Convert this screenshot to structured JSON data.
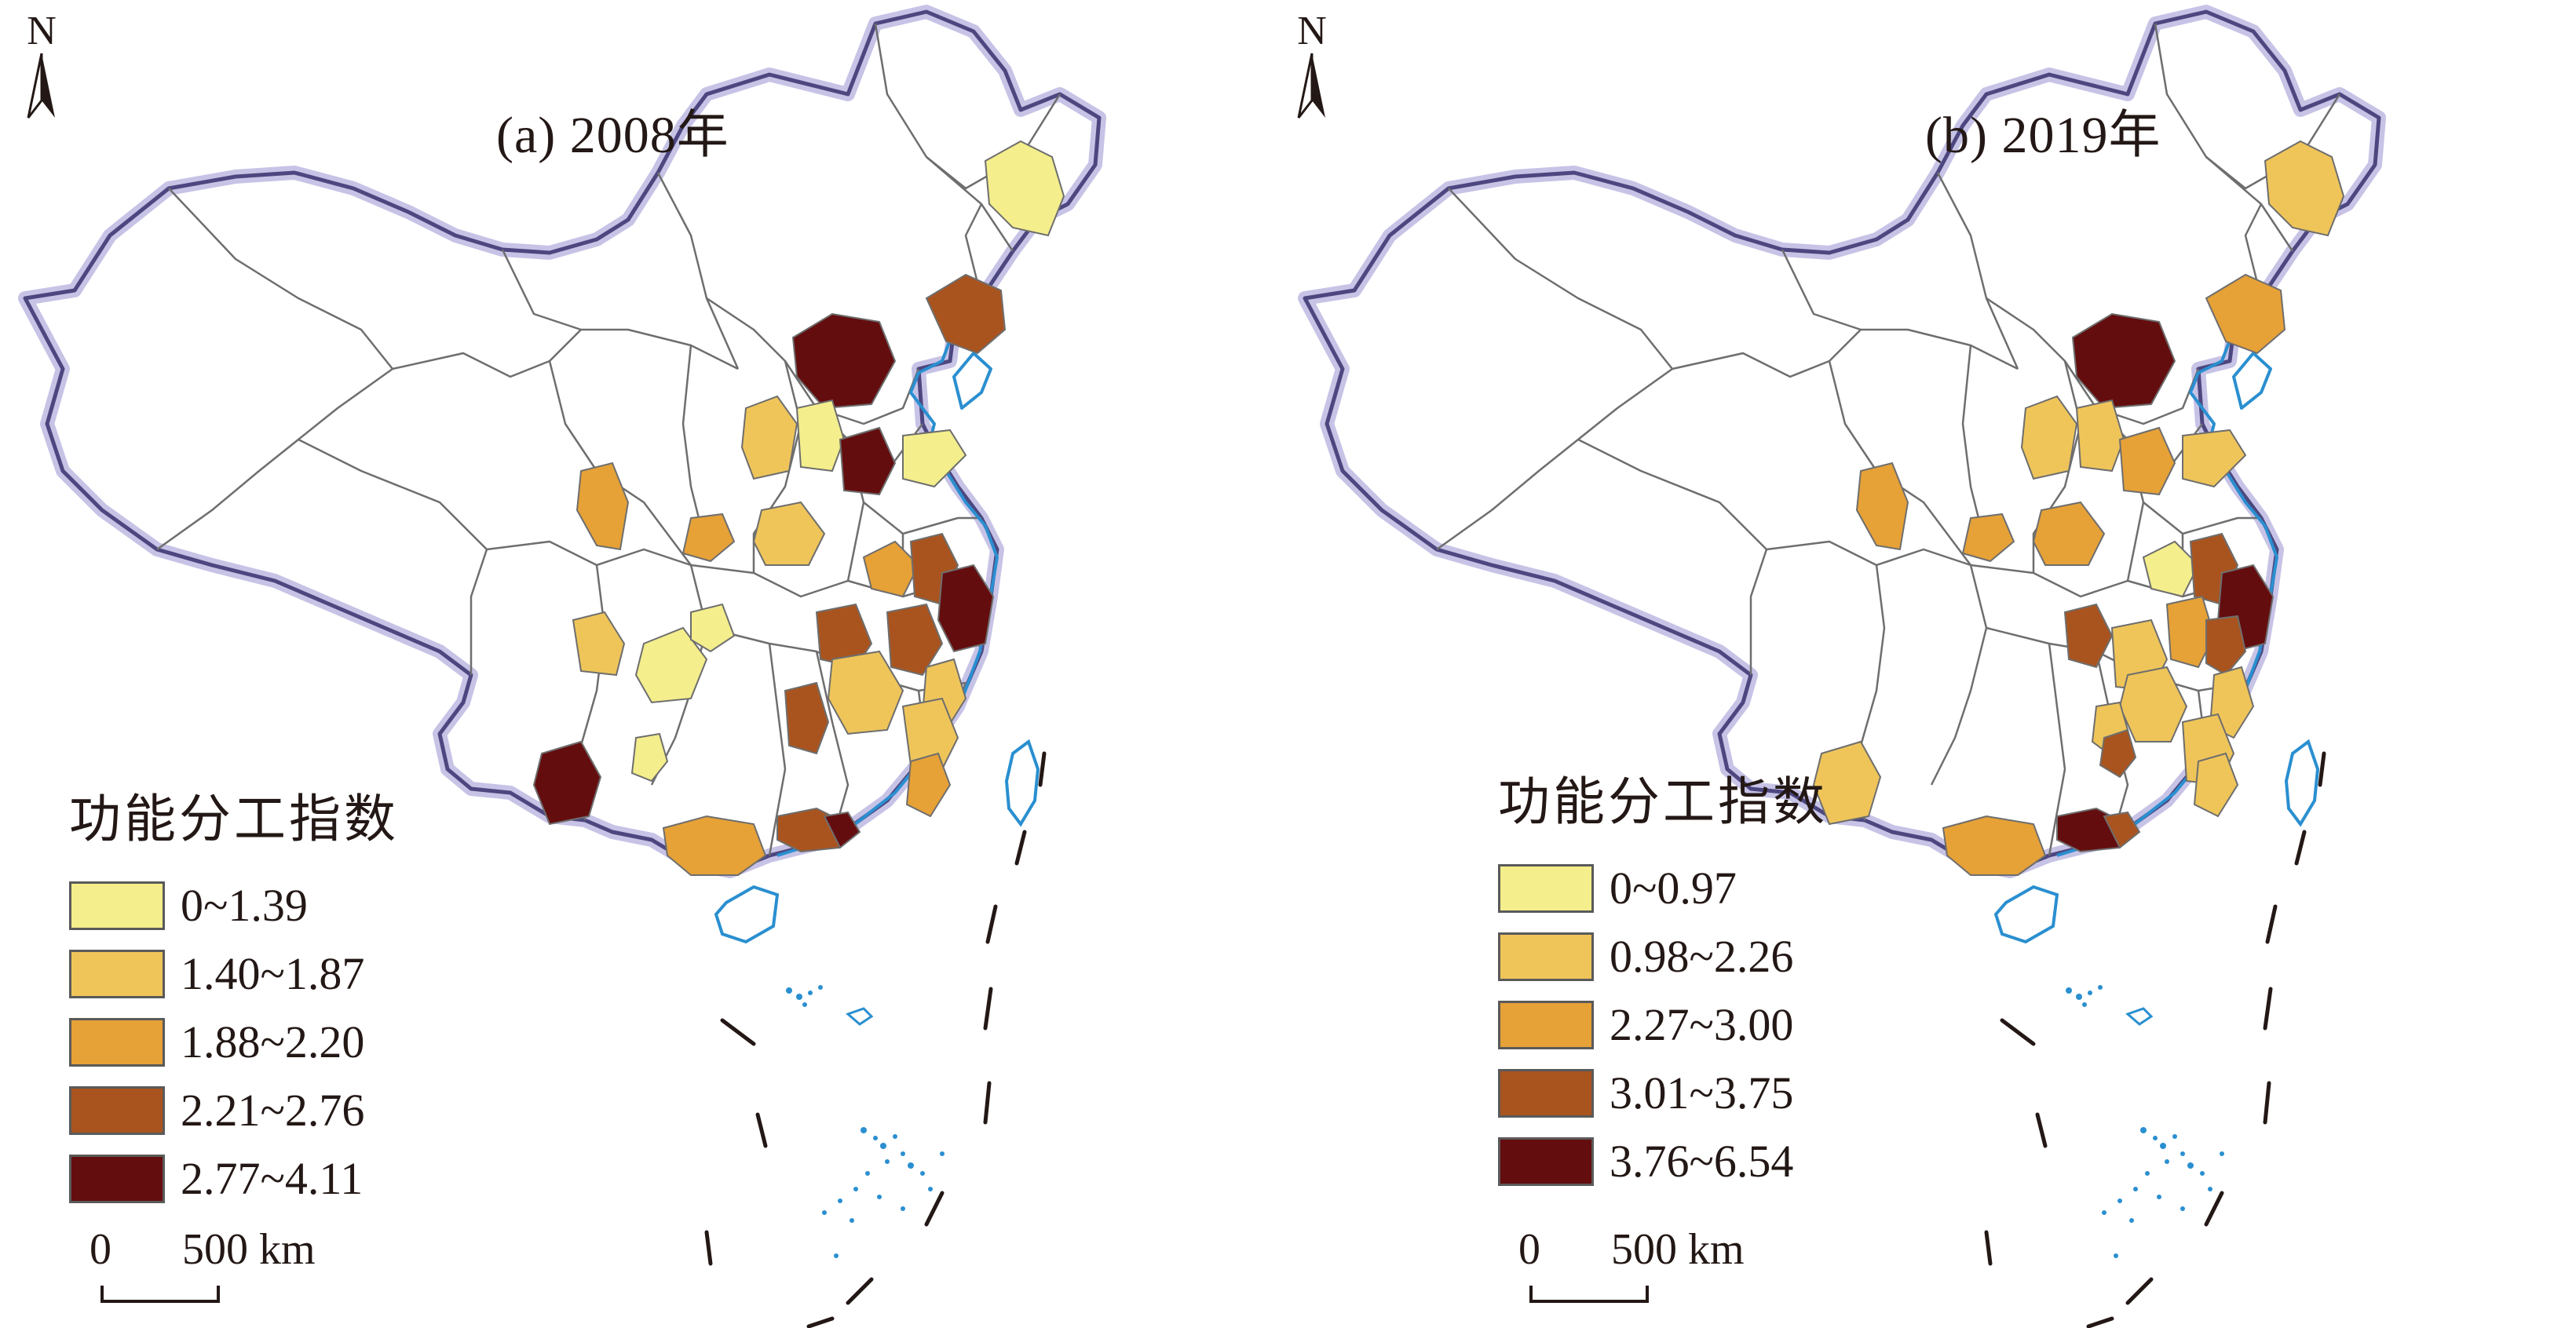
{
  "figure": {
    "panels": [
      {
        "title": "(a) 2008年",
        "north": "N",
        "legend": {
          "title": "功能分工指数",
          "classes": [
            {
              "label": "0~1.39",
              "color": "#f4ee8c"
            },
            {
              "label": "1.40~1.87",
              "color": "#efc55a"
            },
            {
              "label": "1.88~2.20",
              "color": "#e6a137"
            },
            {
              "label": "2.21~2.76",
              "color": "#a9541f"
            },
            {
              "label": "2.77~4.11",
              "color": "#640d0f"
            }
          ]
        },
        "scale_bar": {
          "zero": "0",
          "label": "500 km"
        }
      },
      {
        "title": "(b) 2019年",
        "north": "N",
        "legend": {
          "title": "功能分工指数",
          "classes": [
            {
              "label": "0~0.97",
              "color": "#f4ee8c"
            },
            {
              "label": "0.98~2.26",
              "color": "#efc55a"
            },
            {
              "label": "2.27~3.00",
              "color": "#e6a137"
            },
            {
              "label": "3.01~3.75",
              "color": "#a9541f"
            },
            {
              "label": "3.76~6.54",
              "color": "#640d0f"
            }
          ]
        },
        "scale_bar": {
          "zero": "0",
          "label": "500 km"
        }
      }
    ],
    "colors": {
      "boundary": "#55508a",
      "coast": "#2a8fd0",
      "province_line": "#6e6e6e"
    }
  }
}
